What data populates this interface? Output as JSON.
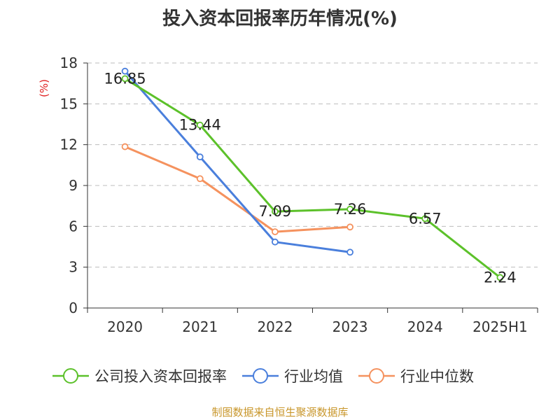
{
  "chart_data": {
    "type": "line",
    "title": "投入资本回报率历年情况(%)",
    "ylabel": "(%)",
    "xlabel": "",
    "categories": [
      "2020",
      "2021",
      "2022",
      "2023",
      "2024",
      "2025H1"
    ],
    "ylim": [
      0,
      18
    ],
    "yticks": [
      0,
      3,
      6,
      9,
      12,
      15,
      18
    ],
    "grid": true,
    "legend_position": "bottom",
    "series": [
      {
        "name": "公司投入资本回报率",
        "color": "#5cc12a",
        "values": [
          16.85,
          13.44,
          7.09,
          7.26,
          6.57,
          2.24
        ],
        "labels": [
          "16.85",
          "13.44",
          "7.09",
          "7.26",
          "6.57",
          "2.24"
        ]
      },
      {
        "name": "行业均值",
        "color": "#4a7fdc",
        "values": [
          17.4,
          11.1,
          4.85,
          4.1,
          null,
          null
        ]
      },
      {
        "name": "行业中位数",
        "color": "#f5925e",
        "values": [
          11.85,
          9.5,
          5.6,
          5.95,
          null,
          null
        ]
      }
    ]
  },
  "footer": {
    "source": "制图数据来自恒生聚源数据库"
  }
}
